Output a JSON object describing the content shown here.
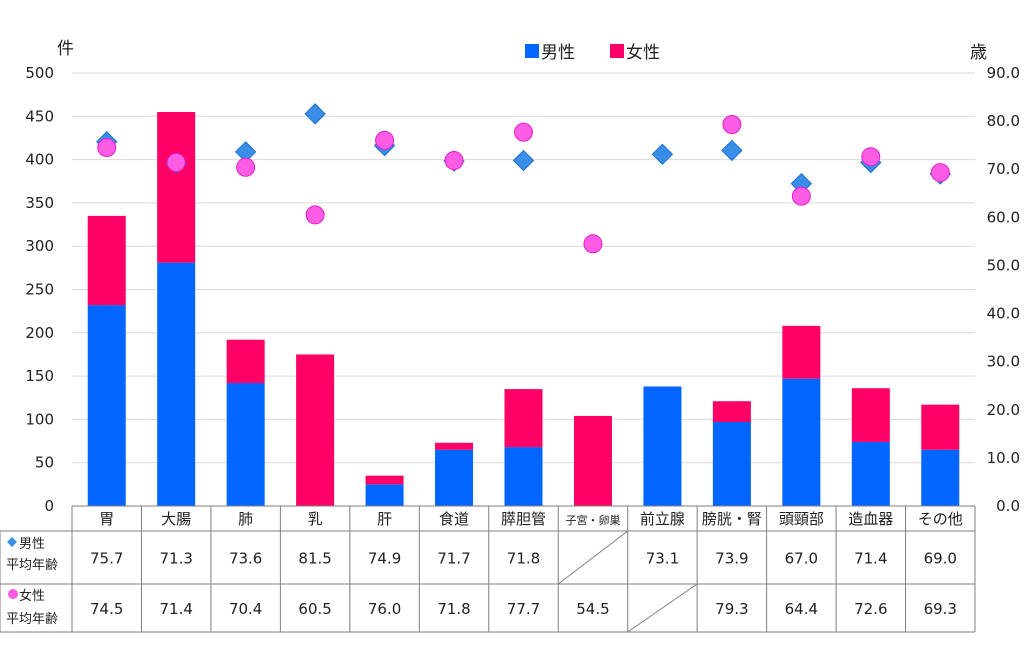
{
  "chart_data": {
    "type": "bar",
    "stacked": true,
    "left_axis_unit": "件",
    "right_axis_unit": "歳",
    "ylim": [
      0,
      500
    ],
    "y2lim": [
      0,
      90
    ],
    "yticks": [
      "0",
      "50",
      "100",
      "150",
      "200",
      "250",
      "300",
      "350",
      "400",
      "450",
      "500"
    ],
    "y2ticks": [
      "0.0",
      "10.0",
      "20.0",
      "30.0",
      "40.0",
      "50.0",
      "60.0",
      "70.0",
      "80.0",
      "90.0"
    ],
    "grid": true,
    "legend_position": "top-center",
    "categories": [
      "胃",
      "大腸",
      "肺",
      "乳",
      "肝",
      "食道",
      "膵胆管",
      "子宮・卵巣",
      "前立腺",
      "膀胱・腎",
      "頭頸部",
      "造血器",
      "その他"
    ],
    "series": [
      {
        "name": "男性",
        "color": "#0066ff",
        "values": [
          232,
          281,
          142,
          0,
          25,
          65,
          68,
          0,
          138,
          97,
          147,
          74,
          65
        ]
      },
      {
        "name": "女性",
        "color": "#ff0066",
        "values": [
          103,
          174,
          50,
          175,
          10,
          8,
          67,
          104,
          0,
          24,
          61,
          62,
          52
        ]
      }
    ],
    "age_series": [
      {
        "label": "男性",
        "label2": "平均年齢",
        "marker": "diamond",
        "color": "#3a8ee8",
        "values": [
          75.7,
          71.3,
          73.6,
          81.5,
          74.9,
          71.7,
          71.8,
          null,
          73.1,
          73.9,
          67.0,
          71.4,
          69.0
        ],
        "display": [
          "75.7",
          "71.3",
          "73.6",
          "81.5",
          "74.9",
          "71.7",
          "71.8",
          "",
          "73.1",
          "73.9",
          "67.0",
          "71.4",
          "69.0"
        ]
      },
      {
        "label": "女性",
        "label2": "平均年齢",
        "marker": "circle",
        "color": "#ff5ce6",
        "values": [
          74.5,
          71.4,
          70.4,
          60.5,
          76.0,
          71.8,
          77.7,
          54.5,
          null,
          79.3,
          64.4,
          72.6,
          69.3
        ],
        "display": [
          "74.5",
          "71.4",
          "70.4",
          "60.5",
          "76.0",
          "71.8",
          "77.7",
          "54.5",
          "",
          "79.3",
          "64.4",
          "72.6",
          "69.3"
        ]
      }
    ]
  }
}
